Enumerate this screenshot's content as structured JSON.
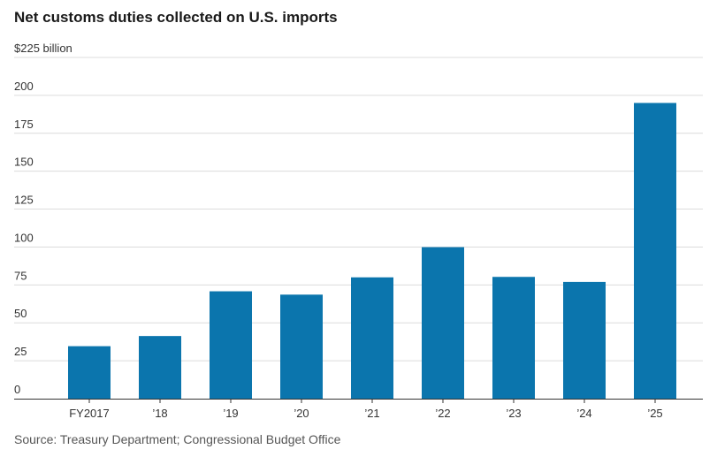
{
  "chart_data": {
    "type": "bar",
    "title": "Net customs duties collected on U.S. imports",
    "source": "Source: Treasury Department; Congressional Budget Office",
    "categories": [
      "FY2017",
      "’18",
      "’19",
      "’20",
      "’21",
      "’22",
      "’23",
      "’24",
      "’25"
    ],
    "values": [
      34.6,
      41.3,
      70.8,
      68.6,
      80.0,
      99.9,
      80.3,
      77.0,
      195.0
    ],
    "ylim": [
      0,
      225
    ],
    "yticks": [
      0,
      25,
      50,
      75,
      100,
      125,
      150,
      175,
      200,
      225
    ],
    "ytick_labels": [
      "0",
      "25",
      "50",
      "75",
      "100",
      "125",
      "150",
      "175",
      "200",
      "$225 billion"
    ],
    "grid": true,
    "bar_color": "#0b75ad"
  }
}
